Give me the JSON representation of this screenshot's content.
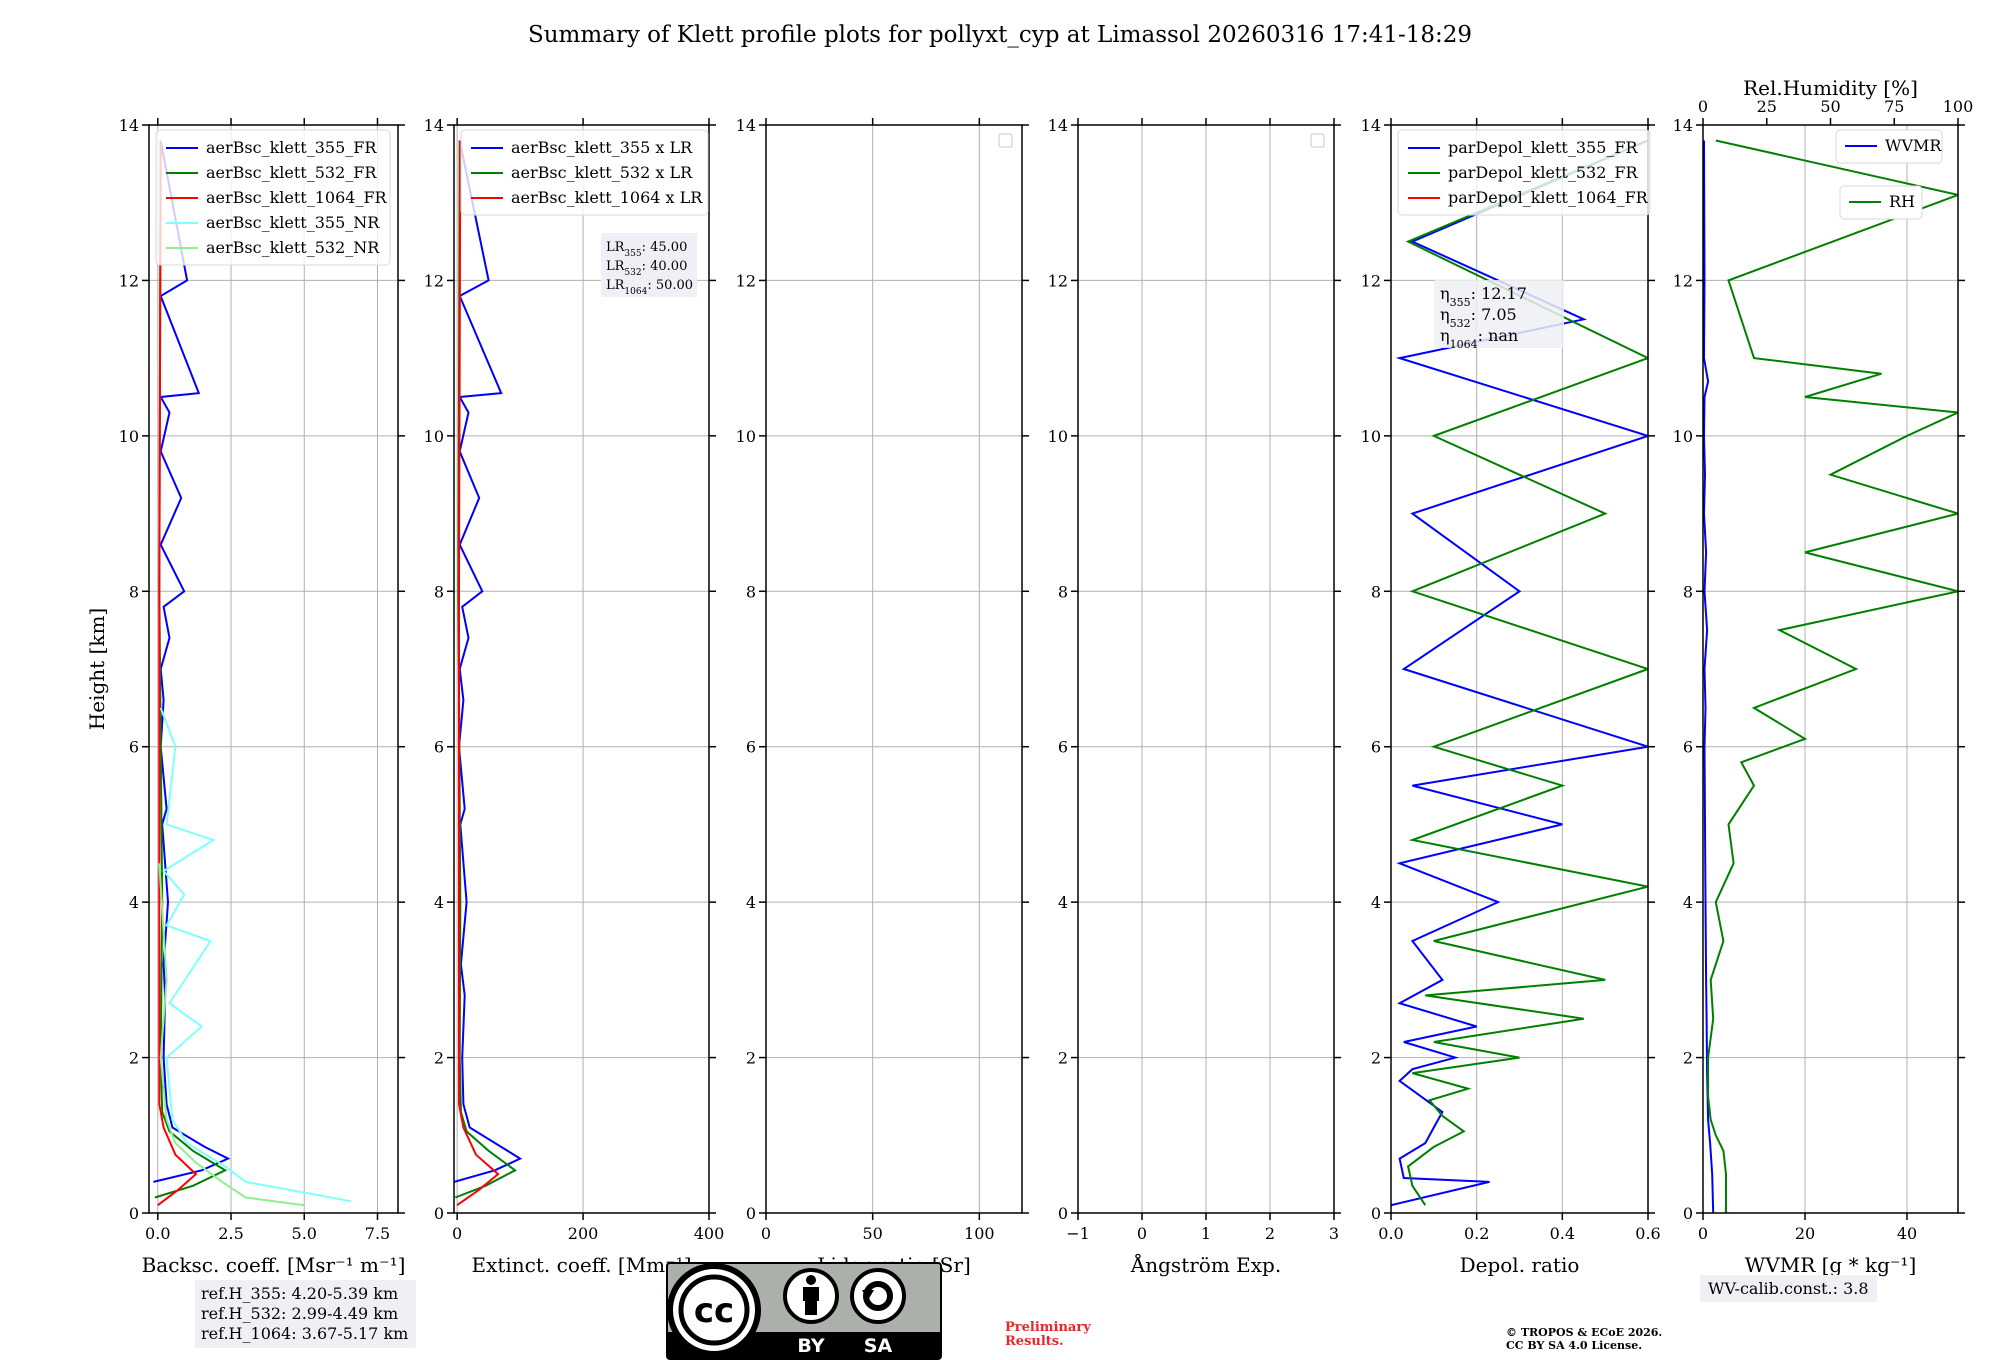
{
  "title": "Summary of Klett profile plots for pollyxt_cyp at Limassol 20260316 17:41-18:29",
  "ylabel": "Height [km]",
  "colors": {
    "b355": "#0000ff",
    "b532": "#008000",
    "b1064": "#ff0000",
    "nr355": "#7fffff",
    "nr532": "#90ee90"
  },
  "chart_data": [
    {
      "id": "bsc",
      "type": "line",
      "xlabel": "Backsc. coeff. [Msr⁻¹ m⁻¹]",
      "xlim": [
        -0.3,
        8.2
      ],
      "xticks": [
        0.0,
        2.5,
        5.0,
        7.5
      ],
      "xtick_labels": [
        "0.0",
        "2.5",
        "5.0",
        "7.5"
      ],
      "ylim": [
        0,
        14
      ],
      "legend": [
        "aerBsc_klett_355_FR",
        "aerBsc_klett_532_FR",
        "aerBsc_klett_1064_FR",
        "aerBsc_klett_355_NR",
        "aerBsc_klett_532_NR"
      ],
      "series": [
        {
          "name": "aerBsc_klett_355_FR",
          "color": "#0000ff",
          "x": [
            -0.15,
            1.5,
            2.4,
            1.6,
            0.5,
            0.3,
            0.2,
            0.25,
            0.2,
            0.35,
            0.15,
            0.3,
            0.1,
            0.2,
            0.1,
            0.4,
            0.2,
            0.9,
            0.1,
            0.8,
            0.1,
            0.4,
            0.1,
            1.4,
            0.1,
            1.0,
            0.1
          ],
          "y": [
            0.4,
            0.55,
            0.7,
            0.85,
            1.1,
            1.4,
            2.0,
            2.8,
            3.2,
            4.0,
            5.0,
            5.2,
            6.0,
            6.6,
            7.0,
            7.4,
            7.8,
            8.0,
            8.6,
            9.2,
            9.8,
            10.3,
            10.5,
            10.55,
            11.8,
            12.0,
            13.8
          ]
        },
        {
          "name": "aerBsc_klett_532_FR",
          "color": "#008000",
          "x": [
            -0.1,
            1.2,
            2.3,
            1.2,
            0.4,
            0.15,
            0.1,
            0.15,
            0.05,
            0.1
          ],
          "y": [
            0.2,
            0.35,
            0.55,
            0.8,
            1.05,
            1.3,
            2.0,
            4.0,
            8.0,
            13.8
          ]
        },
        {
          "name": "aerBsc_klett_1064_FR",
          "color": "#ff0000",
          "x": [
            0.0,
            0.7,
            1.3,
            0.6,
            0.2,
            0.05,
            0.05,
            0.05,
            0.1
          ],
          "y": [
            0.1,
            0.3,
            0.5,
            0.75,
            1.1,
            1.4,
            4.0,
            8.0,
            13.8
          ]
        },
        {
          "name": "aerBsc_klett_355_NR",
          "color": "#7fffff",
          "x": [
            6.6,
            5.2,
            3.0,
            2.3,
            1.0,
            0.5,
            0.3,
            1.5,
            0.4,
            1.8,
            0.3,
            0.9,
            0.2,
            1.9,
            0.3,
            0.6,
            0.1
          ],
          "y": [
            0.15,
            0.25,
            0.4,
            0.6,
            0.9,
            1.2,
            2.0,
            2.4,
            2.7,
            3.5,
            3.7,
            4.1,
            4.4,
            4.8,
            5.0,
            6.0,
            6.5
          ]
        },
        {
          "name": "aerBsc_klett_532_NR",
          "color": "#90ee90",
          "x": [
            5.0,
            3.0,
            2.2,
            1.3,
            0.6,
            0.3,
            0.1,
            0.3,
            0.05
          ],
          "y": [
            0.1,
            0.2,
            0.4,
            0.65,
            0.9,
            1.2,
            2.0,
            3.0,
            4.5
          ]
        }
      ]
    },
    {
      "id": "ext",
      "type": "line",
      "xlabel": "Extinct. coeff. [Mm⁻¹]",
      "xlim": [
        -5,
        400
      ],
      "xticks": [
        0,
        200,
        400
      ],
      "xtick_labels": [
        "0",
        "200",
        "400"
      ],
      "ylim": [
        0,
        14
      ],
      "legend": [
        "aerBsc_klett_355 x LR",
        "aerBsc_klett_532 x LR",
        "aerBsc_klett_1064 x LR"
      ],
      "annotation": [
        {
          "text": "LR",
          "sub": "355",
          "val": ": 45.00"
        },
        {
          "text": "LR",
          "sub": "532",
          "val": ": 40.00"
        },
        {
          "text": "LR",
          "sub": "1064",
          "val": ": 50.00"
        }
      ],
      "series": [
        {
          "name": "aerBsc_klett_355 x LR",
          "color": "#0000ff",
          "x": [
            -5,
            60,
            100,
            70,
            20,
            10,
            8,
            12,
            6,
            15,
            5,
            12,
            3,
            10,
            4,
            18,
            8,
            40,
            4,
            35,
            4,
            18,
            4,
            70,
            4,
            50,
            4
          ],
          "y": [
            0.4,
            0.55,
            0.7,
            0.85,
            1.1,
            1.4,
            2.0,
            2.8,
            3.2,
            4.0,
            5.0,
            5.2,
            6.0,
            6.6,
            7.0,
            7.4,
            7.8,
            8.0,
            8.6,
            9.2,
            9.8,
            10.3,
            10.5,
            10.55,
            11.8,
            12.0,
            13.8
          ]
        },
        {
          "name": "aerBsc_klett_532 x LR",
          "color": "#008000",
          "x": [
            -3,
            45,
            92,
            50,
            15,
            6,
            4,
            5,
            2,
            4
          ],
          "y": [
            0.2,
            0.35,
            0.55,
            0.8,
            1.05,
            1.3,
            2.0,
            4.0,
            8.0,
            13.8
          ]
        },
        {
          "name": "aerBsc_klett_1064 x LR",
          "color": "#ff0000",
          "x": [
            0,
            35,
            65,
            30,
            10,
            3,
            3,
            3,
            5
          ],
          "y": [
            0.1,
            0.3,
            0.5,
            0.75,
            1.1,
            1.4,
            4.0,
            8.0,
            13.8
          ]
        }
      ]
    },
    {
      "id": "lr",
      "type": "line",
      "xlabel": "Lidar ratio [Sr]",
      "xlim": [
        0,
        120
      ],
      "xticks": [
        0,
        50,
        100
      ],
      "xtick_labels": [
        "0",
        "50",
        "100"
      ],
      "ylim": [
        0,
        14
      ],
      "legend": [],
      "series": []
    },
    {
      "id": "ang",
      "type": "line",
      "xlabel": "Ångström Exp.",
      "xlim": [
        -1,
        3
      ],
      "xticks": [
        -1,
        0,
        1,
        2,
        3
      ],
      "xtick_labels": [
        "−1",
        "0",
        "1",
        "2",
        "3"
      ],
      "ylim": [
        0,
        14
      ],
      "legend": [],
      "series": []
    },
    {
      "id": "dep",
      "type": "line",
      "xlabel": "Depol. ratio",
      "xlim": [
        0,
        0.6
      ],
      "xticks": [
        0.0,
        0.2,
        0.4,
        0.6
      ],
      "xtick_labels": [
        "0.0",
        "0.2",
        "0.4",
        "0.6"
      ],
      "ylim": [
        0,
        14
      ],
      "legend": [
        "parDepol_klett_355_FR",
        "parDepol_klett_532_FR",
        "parDepol_klett_1064_FR"
      ],
      "annotation": [
        {
          "text": "η",
          "sub": "355",
          "val": ": 12.17"
        },
        {
          "text": "η",
          "sub": "532",
          "val": ": 7.05"
        },
        {
          "text": "η",
          "sub": "1064",
          "val": ": nan"
        }
      ],
      "series": [
        {
          "name": "parDepol_klett_355_FR",
          "color": "#0000ff",
          "x": [
            0.0,
            0.23,
            0.03,
            0.02,
            0.08,
            0.1,
            0.12,
            0.07,
            0.02,
            0.05,
            0.15,
            0.03,
            0.2,
            0.02,
            0.12,
            0.05,
            0.25,
            0.02,
            0.4,
            0.05,
            0.6,
            0.03,
            0.3,
            0.05,
            0.6,
            0.02,
            0.45,
            0.05,
            0.6
          ],
          "y": [
            0.1,
            0.4,
            0.45,
            0.7,
            0.9,
            1.1,
            1.3,
            1.5,
            1.7,
            1.85,
            2.0,
            2.2,
            2.4,
            2.7,
            3.0,
            3.5,
            4.0,
            4.5,
            5.0,
            5.5,
            6.0,
            7.0,
            8.0,
            9.0,
            10.0,
            11.0,
            11.5,
            12.5,
            13.8
          ]
        },
        {
          "name": "parDepol_klett_532_FR",
          "color": "#008000",
          "x": [
            0.08,
            0.05,
            0.04,
            0.1,
            0.17,
            0.12,
            0.09,
            0.18,
            0.05,
            0.3,
            0.1,
            0.45,
            0.08,
            0.5,
            0.1,
            0.6,
            0.05,
            0.4,
            0.1,
            0.6,
            0.05,
            0.5,
            0.1,
            0.6,
            0.04,
            0.6
          ],
          "y": [
            0.1,
            0.35,
            0.6,
            0.85,
            1.05,
            1.25,
            1.45,
            1.6,
            1.8,
            2.0,
            2.2,
            2.5,
            2.8,
            3.0,
            3.5,
            4.2,
            4.8,
            5.5,
            6.0,
            7.0,
            8.0,
            9.0,
            10.0,
            11.0,
            12.5,
            13.8
          ]
        }
      ]
    },
    {
      "id": "wv",
      "type": "line",
      "xlabel": "WVMR [g * kg⁻¹]",
      "top_xlabel": "Rel.Humidity [%]",
      "xlim": [
        0,
        50
      ],
      "xticks": [
        0,
        20,
        40
      ],
      "xtick_labels": [
        "0",
        "20",
        "40"
      ],
      "top_xlim": [
        0,
        100
      ],
      "top_xticks": [
        0,
        25,
        50,
        75,
        100
      ],
      "top_xtick_labels": [
        "0",
        "25",
        "50",
        "75",
        "100"
      ],
      "ylim": [
        0,
        14
      ],
      "legend": [
        "WVMR",
        "RH"
      ],
      "series": [
        {
          "name": "WVMR",
          "color": "#0000ff",
          "x": [
            2.0,
            1.8,
            1.4,
            1.0,
            0.8,
            0.7,
            0.6,
            0.5,
            0.4,
            0.3,
            0.5,
            0.3,
            0.8,
            0.3,
            0.6,
            0.2,
            0.4,
            0.2,
            0.3,
            1.0,
            0.2,
            0.3,
            0.2
          ],
          "y": [
            0.0,
            0.5,
            0.9,
            1.2,
            1.8,
            2.5,
            3.0,
            4.0,
            5.0,
            6.0,
            6.5,
            7.0,
            7.5,
            8.0,
            8.5,
            9.0,
            9.5,
            10.0,
            10.5,
            10.7,
            11.0,
            12.0,
            13.8
          ]
        },
        {
          "name": "RH",
          "color": "#008000",
          "x": [
            9,
            9,
            8,
            5,
            3,
            2,
            2,
            4,
            3,
            8,
            5,
            12,
            10,
            20,
            15,
            40,
            20,
            60,
            30,
            100,
            40,
            100,
            50,
            80,
            100,
            40,
            70,
            20,
            10,
            100,
            5
          ],
          "y": [
            0.0,
            0.5,
            0.8,
            1.0,
            1.2,
            1.5,
            2.0,
            2.5,
            3.0,
            3.5,
            4.0,
            4.5,
            5.0,
            5.5,
            5.8,
            6.1,
            6.5,
            7.0,
            7.5,
            8.0,
            8.5,
            9.0,
            9.5,
            10.0,
            10.3,
            10.5,
            10.8,
            11.0,
            12.0,
            13.1,
            13.8
          ]
        }
      ]
    }
  ],
  "footer": {
    "ref_lines": [
      "ref.H_355: 4.20-5.39 km",
      "ref.H_532: 2.99-4.49 km",
      "ref.H_1064: 3.67-5.17 km"
    ],
    "wv_calib": "WV-calib.const.: 3.8",
    "prelim_1": "Preliminary",
    "prelim_2": "Results.",
    "copyright_1": "© TROPOS & ECoE 2026.",
    "copyright_2": "CC BY SA 4.0 License.",
    "cc_by": "BY",
    "cc_sa": "SA"
  }
}
